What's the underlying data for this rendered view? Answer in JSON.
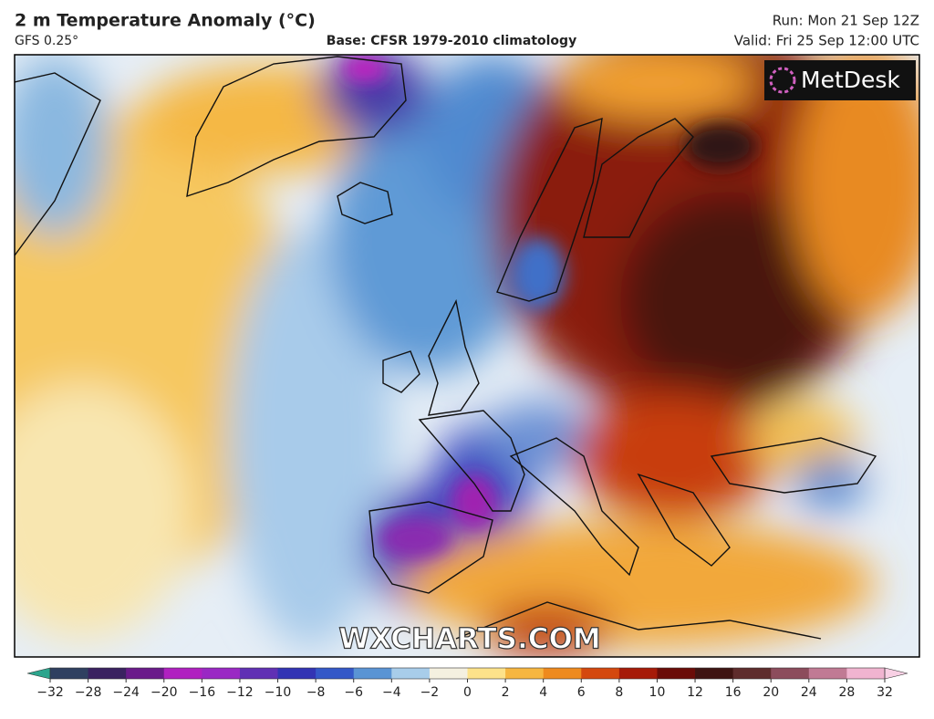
{
  "header": {
    "title": "2 m Temperature Anomaly (°C)",
    "model": "GFS 0.25°",
    "base": "Base: CFSR 1979-2010 climatology",
    "run": "Run: Mon 21 Sep 12Z",
    "valid": "Valid: Fri 25 Sep 12:00 UTC"
  },
  "map": {
    "logo": "MetDesk",
    "watermark": "WXCHARTS.COM"
  },
  "colorbar": {
    "ticks": [
      {
        "value": -32,
        "label": "−32"
      },
      {
        "value": -28,
        "label": "−28"
      },
      {
        "value": -24,
        "label": "−24"
      },
      {
        "value": -20,
        "label": "−20"
      },
      {
        "value": -16,
        "label": "−16"
      },
      {
        "value": -12,
        "label": "−12"
      },
      {
        "value": -10,
        "label": "−10"
      },
      {
        "value": -8,
        "label": "−8"
      },
      {
        "value": -6,
        "label": "−6"
      },
      {
        "value": -4,
        "label": "−4"
      },
      {
        "value": -2,
        "label": "−2"
      },
      0,
      2,
      4,
      6,
      8,
      10,
      12,
      16,
      20,
      24,
      28,
      32
    ],
    "colors": [
      "#2ca58d",
      "#2f4060",
      "#3a2260",
      "#6a1a8a",
      "#b020c0",
      "#9a28c4",
      "#6030b4",
      "#3234b4",
      "#3458c8",
      "#5a94d4",
      "#a8cdea",
      "#f4f0e0",
      "#fde28a",
      "#f6b640",
      "#ee8a1e",
      "#d4480e",
      "#a61a08",
      "#6a0c08",
      "#3e1412",
      "#5e2c2c",
      "#8c4c5c",
      "#c07a94",
      "#f0b4d0",
      "#f8d0e4"
    ]
  }
}
